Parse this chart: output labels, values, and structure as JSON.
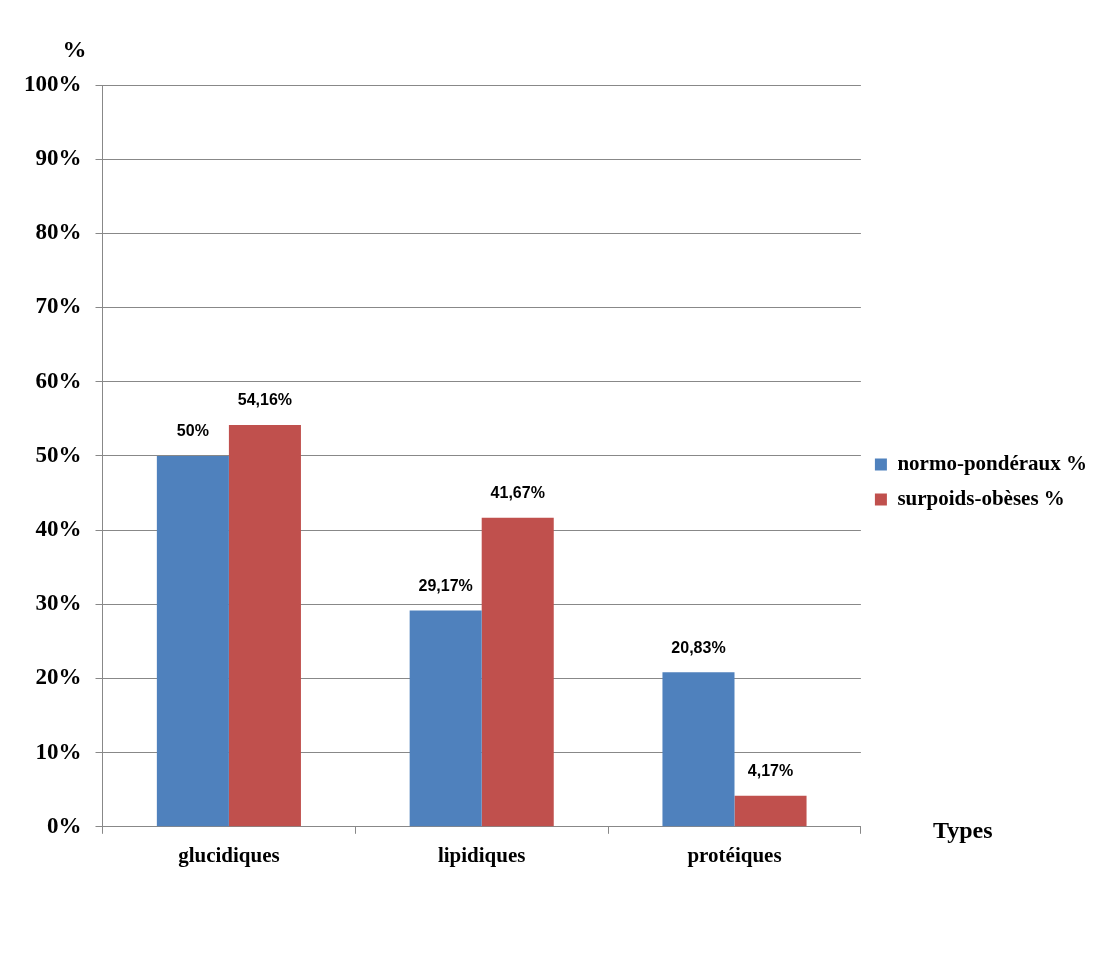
{
  "chart_data": {
    "type": "bar",
    "xlabel": "Types",
    "ylabel": "%",
    "categories": [
      "glucidiques",
      "lipidiques",
      "protéiques"
    ],
    "series": [
      {
        "name": "normo-pondéraux %",
        "color": "#4f81bd",
        "values": [
          50,
          29.17,
          20.83
        ],
        "value_labels": [
          "50%",
          "29,17%",
          "20,83%"
        ]
      },
      {
        "name": "surpoids-obèses %",
        "color": "#c0504d",
        "values": [
          54.16,
          41.67,
          4.17
        ],
        "value_labels": [
          "54,16%",
          "41,67%",
          "4,17%"
        ]
      }
    ],
    "ylim": [
      0,
      100
    ],
    "yticks": [
      {
        "value": 0,
        "label": "0%"
      },
      {
        "value": 10,
        "label": "10%"
      },
      {
        "value": 20,
        "label": "20%"
      },
      {
        "value": 30,
        "label": "30%"
      },
      {
        "value": 40,
        "label": "40%"
      },
      {
        "value": 50,
        "label": "50%"
      },
      {
        "value": 60,
        "label": "60%"
      },
      {
        "value": 70,
        "label": "70%"
      },
      {
        "value": 80,
        "label": "80%"
      },
      {
        "value": 90,
        "label": "90%"
      },
      {
        "value": 100,
        "label": "100%"
      }
    ],
    "grid": "y",
    "legend": "right"
  }
}
